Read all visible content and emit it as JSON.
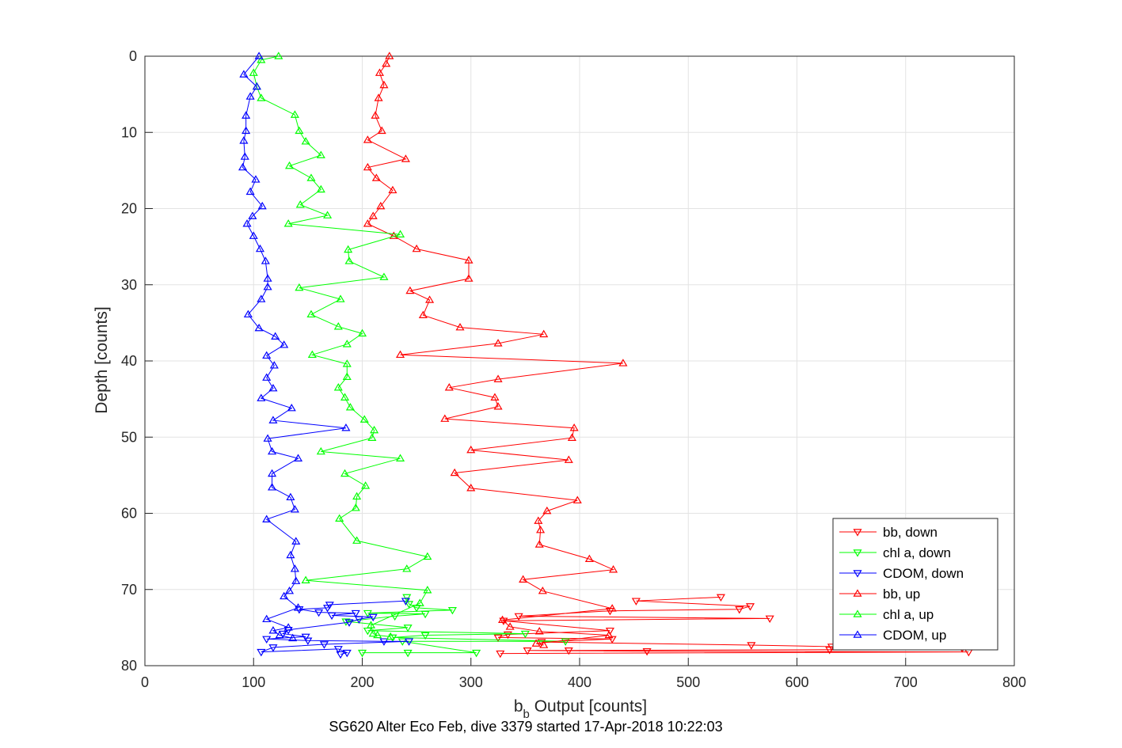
{
  "chart_data": {
    "type": "line",
    "title": "SG620 Alter Eco Feb, dive 3379 started 17-Apr-2018 10:22:03",
    "xlabel_main": "b",
    "xlabel_sub": "b",
    "xlabel_rest": " Output [counts]",
    "ylabel": "Depth [counts]",
    "xlim": [
      0,
      800
    ],
    "ylim": [
      80,
      0
    ],
    "y_reversed": true,
    "grid": true,
    "legend_position": "bottom-right",
    "xticks": [
      "0",
      "100",
      "200",
      "300",
      "400",
      "500",
      "600",
      "700",
      "800"
    ],
    "yticks": [
      "0",
      "10",
      "20",
      "30",
      "40",
      "50",
      "60",
      "70",
      "80"
    ],
    "series": [
      {
        "name": "bb, down",
        "color": "#ff0000",
        "marker": "triangle-down",
        "points": [
          [
            530,
            71
          ],
          [
            452,
            71.5
          ],
          [
            557,
            72.2
          ],
          [
            547,
            72.6
          ],
          [
            428,
            72.8
          ],
          [
            344,
            73.5
          ],
          [
            575,
            73.8
          ],
          [
            330,
            74.1
          ],
          [
            428,
            75.4
          ],
          [
            334,
            75.9
          ],
          [
            325,
            76.3
          ],
          [
            430,
            76.5
          ],
          [
            365,
            76.9
          ],
          [
            558,
            77.3
          ],
          [
            632,
            77.5
          ],
          [
            752,
            77.7
          ],
          [
            630,
            77.9
          ],
          [
            390,
            78
          ],
          [
            352,
            78
          ],
          [
            462,
            78.1
          ],
          [
            758,
            78.2
          ],
          [
            327,
            78.4
          ]
        ]
      },
      {
        "name": "chl a, down",
        "color": "#00ff00",
        "marker": "triangle-down",
        "points": [
          [
            241,
            71
          ],
          [
            243,
            71.9
          ],
          [
            250,
            72.4
          ],
          [
            283,
            72.7
          ],
          [
            205,
            73.1
          ],
          [
            258,
            73.2
          ],
          [
            230,
            73.5
          ],
          [
            185,
            74.2
          ],
          [
            242,
            75
          ],
          [
            205,
            75.4
          ],
          [
            350,
            75.8
          ],
          [
            258,
            76
          ],
          [
            228,
            76.3
          ],
          [
            387,
            76.8
          ],
          [
            237,
            76.8
          ],
          [
            305,
            78.3
          ],
          [
            242,
            78.3
          ],
          [
            200,
            78.3
          ]
        ]
      },
      {
        "name": "CDOM, down",
        "color": "#0000ff",
        "marker": "triangle-down",
        "points": [
          [
            240,
            71.5
          ],
          [
            170,
            72
          ],
          [
            168,
            72.4
          ],
          [
            142,
            72.6
          ],
          [
            160,
            73
          ],
          [
            194,
            73.1
          ],
          [
            172,
            73.4
          ],
          [
            210,
            73.6
          ],
          [
            197,
            73.9
          ],
          [
            188,
            74.3
          ],
          [
            132,
            75.3
          ],
          [
            127,
            75.8
          ],
          [
            148,
            76.2
          ],
          [
            112,
            76.5
          ],
          [
            150,
            76.7
          ],
          [
            220,
            76.8
          ],
          [
            243,
            76.8
          ],
          [
            165,
            77.2
          ],
          [
            118,
            77.6
          ],
          [
            107,
            78.2
          ],
          [
            178,
            77.8
          ],
          [
            186,
            78.3
          ],
          [
            180,
            78.5
          ]
        ]
      },
      {
        "name": "bb, up",
        "color": "#ff0000",
        "marker": "triangle-up",
        "points": [
          [
            225,
            0
          ],
          [
            222,
            1
          ],
          [
            216,
            2.2
          ],
          [
            220,
            3.8
          ],
          [
            215,
            5.5
          ],
          [
            212,
            7.8
          ],
          [
            218,
            9.8
          ],
          [
            205,
            11
          ],
          [
            240,
            13.5
          ],
          [
            205,
            14.6
          ],
          [
            213,
            16
          ],
          [
            228,
            17.6
          ],
          [
            217,
            19.7
          ],
          [
            210,
            21
          ],
          [
            205,
            22
          ],
          [
            229,
            23.6
          ],
          [
            250,
            25.3
          ],
          [
            298,
            26.8
          ],
          [
            298,
            29.2
          ],
          [
            244,
            30.8
          ],
          [
            262,
            32
          ],
          [
            256,
            34
          ],
          [
            290,
            35.6
          ],
          [
            367,
            36.5
          ],
          [
            325,
            37.7
          ],
          [
            235,
            39.2
          ],
          [
            440,
            40.3
          ],
          [
            325,
            42.4
          ],
          [
            280,
            43.5
          ],
          [
            322,
            44.8
          ],
          [
            325,
            46
          ],
          [
            276,
            47.6
          ],
          [
            395,
            48.8
          ],
          [
            393,
            50.1
          ],
          [
            300,
            51.7
          ],
          [
            390,
            53
          ],
          [
            285,
            54.7
          ],
          [
            300,
            56.7
          ],
          [
            398,
            58.3
          ],
          [
            370,
            59.7
          ],
          [
            362,
            61
          ],
          [
            364,
            62.2
          ],
          [
            363,
            64.1
          ],
          [
            409,
            66
          ],
          [
            431,
            67.4
          ],
          [
            348,
            68.7
          ],
          [
            366,
            70.2
          ],
          [
            430,
            72.5
          ],
          [
            329,
            74
          ],
          [
            336,
            74.9
          ],
          [
            363,
            75.5
          ],
          [
            427,
            76
          ],
          [
            360,
            77.1
          ],
          [
            367,
            77.3
          ]
        ]
      },
      {
        "name": "chl a, up",
        "color": "#00ff00",
        "marker": "triangle-up",
        "points": [
          [
            123,
            0
          ],
          [
            107,
            0.5
          ],
          [
            100,
            2.2
          ],
          [
            103,
            4
          ],
          [
            107,
            5.5
          ],
          [
            138,
            7.7
          ],
          [
            142,
            9.8
          ],
          [
            148,
            11.2
          ],
          [
            162,
            13
          ],
          [
            133,
            14.4
          ],
          [
            153,
            16
          ],
          [
            162,
            17.5
          ],
          [
            143,
            19.5
          ],
          [
            168,
            20.9
          ],
          [
            132,
            22
          ],
          [
            235,
            23.4
          ],
          [
            187,
            25.4
          ],
          [
            188,
            26.9
          ],
          [
            220,
            29
          ],
          [
            142,
            30.4
          ],
          [
            180,
            31.9
          ],
          [
            153,
            33.9
          ],
          [
            178,
            35.5
          ],
          [
            200,
            36.4
          ],
          [
            186,
            37.8
          ],
          [
            154,
            39.2
          ],
          [
            186,
            40.4
          ],
          [
            186,
            42.1
          ],
          [
            178,
            43.5
          ],
          [
            184,
            44.8
          ],
          [
            189,
            46.1
          ],
          [
            202,
            47.7
          ],
          [
            211,
            49.1
          ],
          [
            209,
            50.1
          ],
          [
            162,
            51.9
          ],
          [
            235,
            52.8
          ],
          [
            184,
            54.8
          ],
          [
            203,
            56.4
          ],
          [
            195,
            57.8
          ],
          [
            194,
            59.3
          ],
          [
            179,
            60.7
          ],
          [
            195,
            63.6
          ],
          [
            260,
            65.7
          ],
          [
            241,
            67.3
          ],
          [
            148,
            68.8
          ],
          [
            260,
            70.1
          ],
          [
            253,
            71.8
          ],
          [
            208,
            74.7
          ],
          [
            210,
            75.8
          ],
          [
            214,
            76
          ],
          [
            226,
            76.2
          ]
        ]
      },
      {
        "name": "CDOM, up",
        "color": "#0000ff",
        "marker": "triangle-up",
        "points": [
          [
            105,
            0
          ],
          [
            91,
            2.4
          ],
          [
            103,
            4
          ],
          [
            97,
            5.3
          ],
          [
            93,
            7.8
          ],
          [
            93,
            9.8
          ],
          [
            91,
            11.1
          ],
          [
            92,
            13.2
          ],
          [
            90,
            14.6
          ],
          [
            102,
            16.2
          ],
          [
            97,
            17.8
          ],
          [
            108,
            19.7
          ],
          [
            99,
            21
          ],
          [
            94,
            22
          ],
          [
            100,
            23.6
          ],
          [
            106,
            25.3
          ],
          [
            111,
            26.9
          ],
          [
            113,
            29.2
          ],
          [
            113,
            30.3
          ],
          [
            107,
            31.9
          ],
          [
            95,
            33.9
          ],
          [
            105,
            35.7
          ],
          [
            120,
            36.8
          ],
          [
            128,
            37.9
          ],
          [
            112,
            39.3
          ],
          [
            119,
            40.6
          ],
          [
            112,
            42.2
          ],
          [
            118,
            43.6
          ],
          [
            107,
            44.9
          ],
          [
            135,
            46.2
          ],
          [
            118,
            47.8
          ],
          [
            185,
            48.8
          ],
          [
            113,
            50.2
          ],
          [
            117,
            51.9
          ],
          [
            141,
            52.8
          ],
          [
            117,
            54.8
          ],
          [
            117,
            56.6
          ],
          [
            134,
            57.9
          ],
          [
            138,
            59.5
          ],
          [
            112,
            60.8
          ],
          [
            139,
            63.7
          ],
          [
            134,
            65.5
          ],
          [
            138,
            67.3
          ],
          [
            139,
            68.9
          ],
          [
            133,
            70.2
          ],
          [
            128,
            70.9
          ],
          [
            141,
            72.4
          ],
          [
            112,
            73.9
          ],
          [
            132,
            75
          ],
          [
            118,
            75.4
          ],
          [
            124,
            76
          ],
          [
            136,
            76.4
          ]
        ]
      }
    ]
  }
}
